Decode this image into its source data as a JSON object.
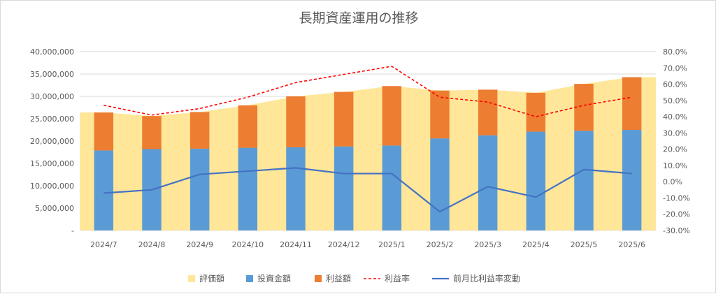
{
  "chart_data": {
    "type": "bar",
    "title": "長期資産運用の推移",
    "categories": [
      "2024/7",
      "2024/8",
      "2024/9",
      "2024/10",
      "2024/11",
      "2024/12",
      "2025/1",
      "2025/2",
      "2025/3",
      "2025/4",
      "2025/5",
      "2025/6"
    ],
    "series": [
      {
        "name": "評価額",
        "kind": "area",
        "axis": "left",
        "color": "#FFE699",
        "values": [
          26400000,
          25600000,
          26500000,
          28000000,
          30000000,
          31000000,
          32300000,
          31300000,
          31500000,
          30800000,
          32800000,
          34300000
        ]
      },
      {
        "name": "投資金額",
        "kind": "stacked-bar",
        "axis": "left",
        "color": "#5B9BD5",
        "values": [
          17900000,
          18200000,
          18300000,
          18500000,
          18600000,
          18800000,
          19000000,
          20600000,
          21300000,
          22100000,
          22300000,
          22500000
        ]
      },
      {
        "name": "利益額",
        "kind": "stacked-bar",
        "axis": "left",
        "color": "#ED7D31",
        "values": [
          8500000,
          7400000,
          8200000,
          9500000,
          11400000,
          12200000,
          13300000,
          10700000,
          10200000,
          8700000,
          10500000,
          11800000
        ]
      },
      {
        "name": "利益率",
        "kind": "line-dashed",
        "axis": "right",
        "color": "#FF0000",
        "values": [
          47.0,
          41.0,
          45.0,
          52.0,
          61.0,
          66.0,
          71.0,
          52.0,
          49.0,
          40.0,
          47.0,
          52.0
        ]
      },
      {
        "name": "前月比利益率変動",
        "kind": "line",
        "axis": "right",
        "color": "#4472C4",
        "values": [
          -7.0,
          -5.0,
          4.5,
          6.5,
          8.5,
          5.0,
          5.0,
          -18.5,
          -3.0,
          -9.5,
          7.5,
          5.0
        ]
      }
    ],
    "left_axis": {
      "min": 0,
      "max": 40000000,
      "step": 5000000,
      "tick_labels": [
        "-",
        "5,000,000",
        "10,000,000",
        "15,000,000",
        "20,000,000",
        "25,000,000",
        "30,000,000",
        "35,000,000",
        "40,000,000"
      ]
    },
    "right_axis": {
      "min": -30,
      "max": 80,
      "step": 10,
      "tick_labels": [
        "-30.0%",
        "-20.0%",
        "-10.0%",
        "0.0%",
        "10.0%",
        "20.0%",
        "30.0%",
        "40.0%",
        "50.0%",
        "60.0%",
        "70.0%",
        "80.0%"
      ]
    },
    "grid": true,
    "legend_position": "bottom"
  }
}
